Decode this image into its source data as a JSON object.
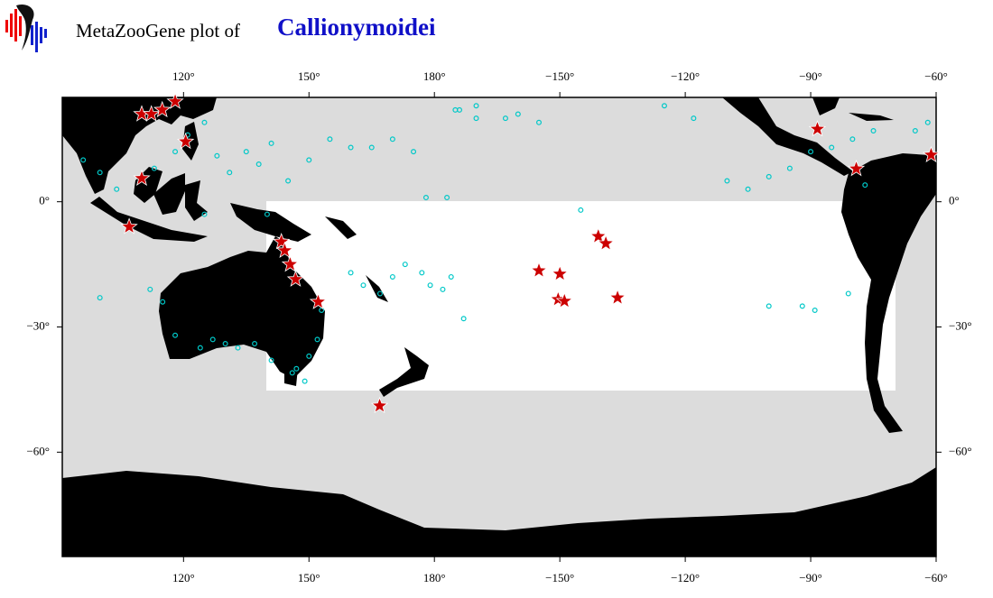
{
  "chart_data": {
    "type": "map",
    "title_prefix": "MetaZooGene plot of",
    "title_taxon": "Callionymoidei",
    "xlim": [
      91,
      300
    ],
    "ylim": [
      -85,
      25
    ],
    "xticks": [
      {
        "value": 120,
        "label": "120°"
      },
      {
        "value": 150,
        "label": "150°"
      },
      {
        "value": 180,
        "label": "180°"
      },
      {
        "value": -150,
        "label": "−150°"
      },
      {
        "value": -120,
        "label": "−120°"
      },
      {
        "value": -90,
        "label": "−90°"
      },
      {
        "value": -60,
        "label": "−60°"
      }
    ],
    "yticks": [
      {
        "value": 0,
        "label": "0°"
      },
      {
        "value": -30,
        "label": "−30°"
      },
      {
        "value": -60,
        "label": "−60°"
      }
    ],
    "series": [
      {
        "marker": "circle",
        "color": "#00c8c8",
        "lon": [
          96,
          100,
          104,
          113,
          118,
          121,
          125,
          128,
          131,
          135,
          138,
          141,
          145,
          150,
          155,
          160,
          165,
          170,
          175,
          178,
          183,
          186,
          190,
          -175,
          -170,
          -163,
          -160,
          -155,
          -145,
          -125,
          -118,
          -110,
          -105,
          -100,
          -95,
          -90,
          -85,
          -80,
          -75,
          -65,
          -62,
          112,
          115,
          118,
          124,
          127,
          130,
          133,
          137,
          141,
          147,
          150,
          152,
          153,
          149,
          146,
          160,
          163,
          167,
          170,
          173,
          177,
          179,
          -176,
          -178,
          -173,
          100,
          125,
          140,
          -100,
          -92,
          -89,
          -81,
          -77
        ],
        "lat": [
          10,
          7,
          3,
          8,
          12,
          16,
          19,
          11,
          7,
          12,
          9,
          14,
          5,
          10,
          15,
          13,
          13,
          15,
          12,
          1,
          1,
          22,
          23,
          22,
          20,
          20,
          21,
          19,
          -2,
          23,
          20,
          5,
          3,
          6,
          8,
          12,
          13,
          15,
          17,
          17,
          19,
          -21,
          -24,
          -32,
          -35,
          -33,
          -34,
          -35,
          -34,
          -38,
          -40,
          -37,
          -33,
          -26,
          -43,
          -41,
          -17,
          -20,
          -22,
          -18,
          -15,
          -17,
          -20,
          -18,
          -21,
          -28,
          -23,
          -3,
          -3,
          -25,
          -25,
          -26,
          -22,
          4
        ]
      },
      {
        "marker": "star",
        "color": "#cc0000",
        "lon": [
          110,
          112.3,
          114.9,
          118,
          120.5,
          110,
          107,
          143.4,
          144.2,
          145.5,
          146.8,
          152.2,
          166.9,
          -155,
          -150,
          -140.8,
          -139,
          -150.4,
          -148.9,
          -136.2,
          -88.4,
          -79.1,
          -61.2
        ],
        "lat": [
          21,
          21,
          22,
          24,
          14.4,
          5.6,
          -6,
          -9.6,
          -11.7,
          -15,
          -18.6,
          -24,
          -48.9,
          -16.5,
          -17.3,
          -8.3,
          -10,
          -23.4,
          -23.8,
          -23,
          17.4,
          7.9,
          11.2
        ]
      }
    ]
  }
}
